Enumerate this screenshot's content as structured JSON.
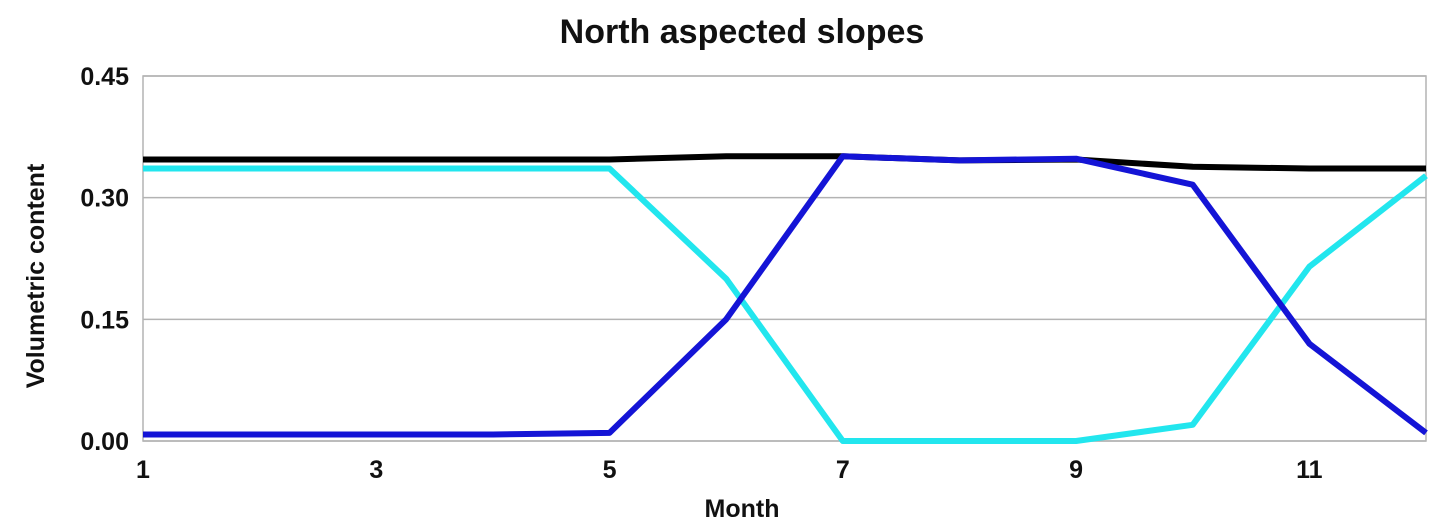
{
  "chart_data": {
    "type": "line",
    "title": "North aspected slopes",
    "xlabel": "Month",
    "ylabel": "Volumetric content",
    "xlim": [
      1,
      12
    ],
    "ylim": [
      0,
      0.45
    ],
    "x_ticks": [
      "1",
      "3",
      "5",
      "7",
      "9",
      "11"
    ],
    "y_ticks": [
      "0.00",
      "0.15",
      "0.30",
      "0.45"
    ],
    "grid": "horizontal",
    "legend": "none",
    "x": [
      1,
      2,
      3,
      4,
      5,
      6,
      7,
      8,
      9,
      10,
      11,
      12
    ],
    "series": [
      {
        "color": "#000000",
        "values": [
          0.347,
          0.347,
          0.347,
          0.347,
          0.347,
          0.351,
          0.351,
          0.346,
          0.347,
          0.338,
          0.336,
          0.336
        ]
      },
      {
        "color": "#22e6ee",
        "values": [
          0.336,
          0.336,
          0.336,
          0.336,
          0.336,
          0.2,
          0.0,
          0.0,
          0.0,
          0.02,
          0.215,
          0.327
        ]
      },
      {
        "color": "#1414d6",
        "values": [
          0.008,
          0.008,
          0.008,
          0.008,
          0.01,
          0.15,
          0.351,
          0.346,
          0.348,
          0.316,
          0.12,
          0.01
        ]
      }
    ]
  }
}
